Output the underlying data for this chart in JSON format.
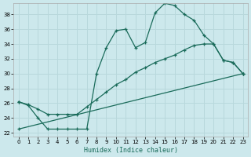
{
  "xlabel": "Humidex (Indice chaleur)",
  "bg_color": "#cce8ec",
  "grid_color": "#b8d8dc",
  "line_color": "#1a6b5a",
  "xlim": [
    -0.5,
    23.5
  ],
  "ylim": [
    21.5,
    39.5
  ],
  "yticks": [
    22,
    24,
    26,
    28,
    30,
    32,
    34,
    36,
    38
  ],
  "xticks": [
    0,
    1,
    2,
    3,
    4,
    5,
    6,
    7,
    8,
    9,
    10,
    11,
    12,
    13,
    14,
    15,
    16,
    17,
    18,
    19,
    20,
    21,
    22,
    23
  ],
  "line1_x": [
    0,
    1,
    2,
    3,
    4,
    5,
    6,
    7,
    8,
    9,
    10,
    11,
    12,
    13,
    14,
    15,
    16,
    17,
    18,
    19,
    20,
    21,
    22,
    23
  ],
  "line1_y": [
    26.2,
    25.7,
    24.0,
    22.5,
    22.5,
    22.5,
    22.5,
    22.5,
    30.0,
    33.5,
    35.8,
    36.0,
    33.5,
    34.2,
    38.2,
    39.5,
    39.2,
    38.0,
    37.2,
    35.2,
    34.0,
    31.8,
    31.5,
    30.0
  ],
  "line2_x": [
    0,
    1,
    2,
    3,
    4,
    5,
    6,
    7,
    8,
    9,
    10,
    11,
    12,
    13,
    14,
    15,
    16,
    17,
    18,
    19,
    20,
    21,
    22,
    23
  ],
  "line2_y": [
    26.2,
    25.8,
    25.2,
    24.5,
    24.5,
    24.5,
    24.5,
    25.5,
    26.5,
    27.5,
    28.5,
    29.2,
    30.2,
    30.8,
    31.5,
    32.0,
    32.5,
    33.2,
    33.8,
    34.0,
    34.0,
    31.8,
    31.5,
    30.0
  ],
  "line3_x": [
    0,
    23
  ],
  "line3_y": [
    22.5,
    30.0
  ]
}
